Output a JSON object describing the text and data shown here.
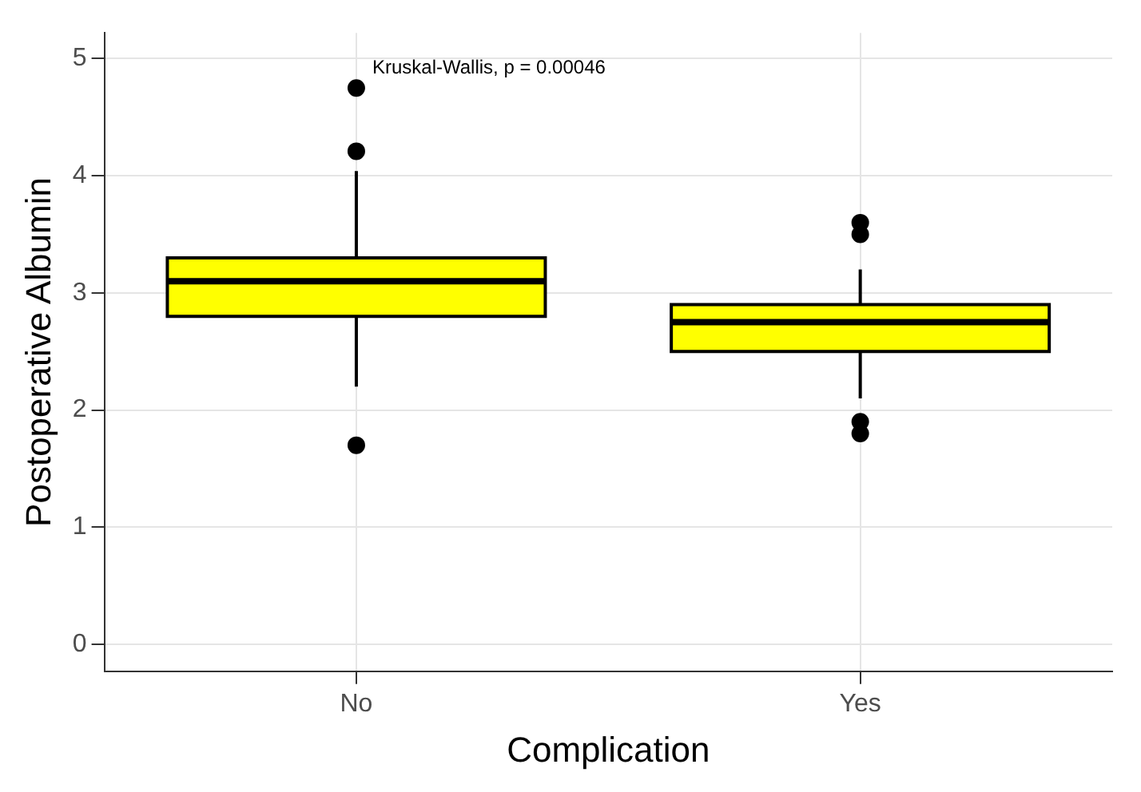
{
  "chart_data": {
    "type": "box",
    "categories": [
      "No",
      "Yes"
    ],
    "xlabel": "Complication",
    "ylabel": "Postoperative Albumin",
    "color": "#ffff00",
    "marker": "circle",
    "grid": true,
    "ylim": [
      -0.23,
      5.22
    ],
    "yticks": [
      0,
      1,
      2,
      3,
      4,
      5
    ],
    "boxes": [
      {
        "low": 2.2,
        "q1": 2.8,
        "median": 3.1,
        "q3": 3.3,
        "high": 4.04,
        "outliers": [
          4.75,
          4.21,
          1.7
        ]
      },
      {
        "low": 2.1,
        "q1": 2.5,
        "median": 2.75,
        "q3": 2.9,
        "high": 3.2,
        "outliers": [
          3.6,
          3.5,
          1.9,
          1.8
        ]
      }
    ],
    "annotations": [
      "Kruskal-Wallis, p = 0.00046"
    ]
  }
}
